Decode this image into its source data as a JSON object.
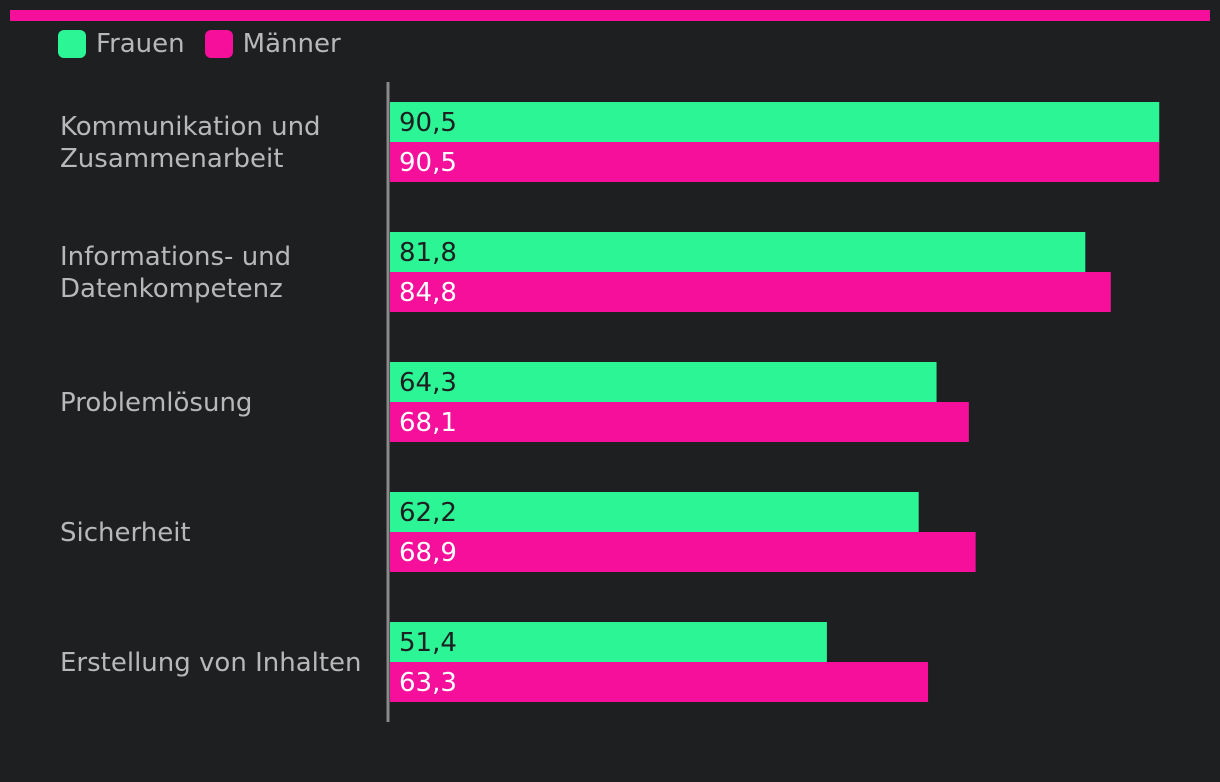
{
  "colors": {
    "background": "#1e1f21",
    "frauen": "#2bf595",
    "maenner": "#f50f9a",
    "axis": "#8a8a8a",
    "category_text": "#b8b8b8",
    "value_text_frauen": "#1e1f21",
    "value_text_maenner": "#ffffff"
  },
  "legend": {
    "items": [
      {
        "label": "Frauen",
        "color": "#2bf595"
      },
      {
        "label": "Männer",
        "color": "#f50f9a"
      }
    ]
  },
  "chart_data": {
    "type": "bar",
    "orientation": "horizontal",
    "title": "",
    "xlabel": "",
    "ylabel": "",
    "xlim": [
      0,
      100
    ],
    "grid": false,
    "legend_position": "top-left",
    "categories": [
      [
        "Kommunikation und",
        "Zusammenarbeit"
      ],
      [
        "Informations- und",
        "Datenkompetenz"
      ],
      [
        "Problemlösung"
      ],
      [
        "Sicherheit"
      ],
      [
        "Erstellung von Inhalten"
      ]
    ],
    "series": [
      {
        "name": "Frauen",
        "values": [
          90.5,
          81.8,
          64.3,
          62.2,
          51.4
        ],
        "labels": [
          "90,5",
          "81,8",
          "64,3",
          "62,2",
          "51,4"
        ]
      },
      {
        "name": "Männer",
        "values": [
          90.5,
          84.8,
          68.1,
          68.9,
          63.3
        ],
        "labels": [
          "90,5",
          "84,8",
          "68,1",
          "68,9",
          "63,3"
        ]
      }
    ]
  }
}
